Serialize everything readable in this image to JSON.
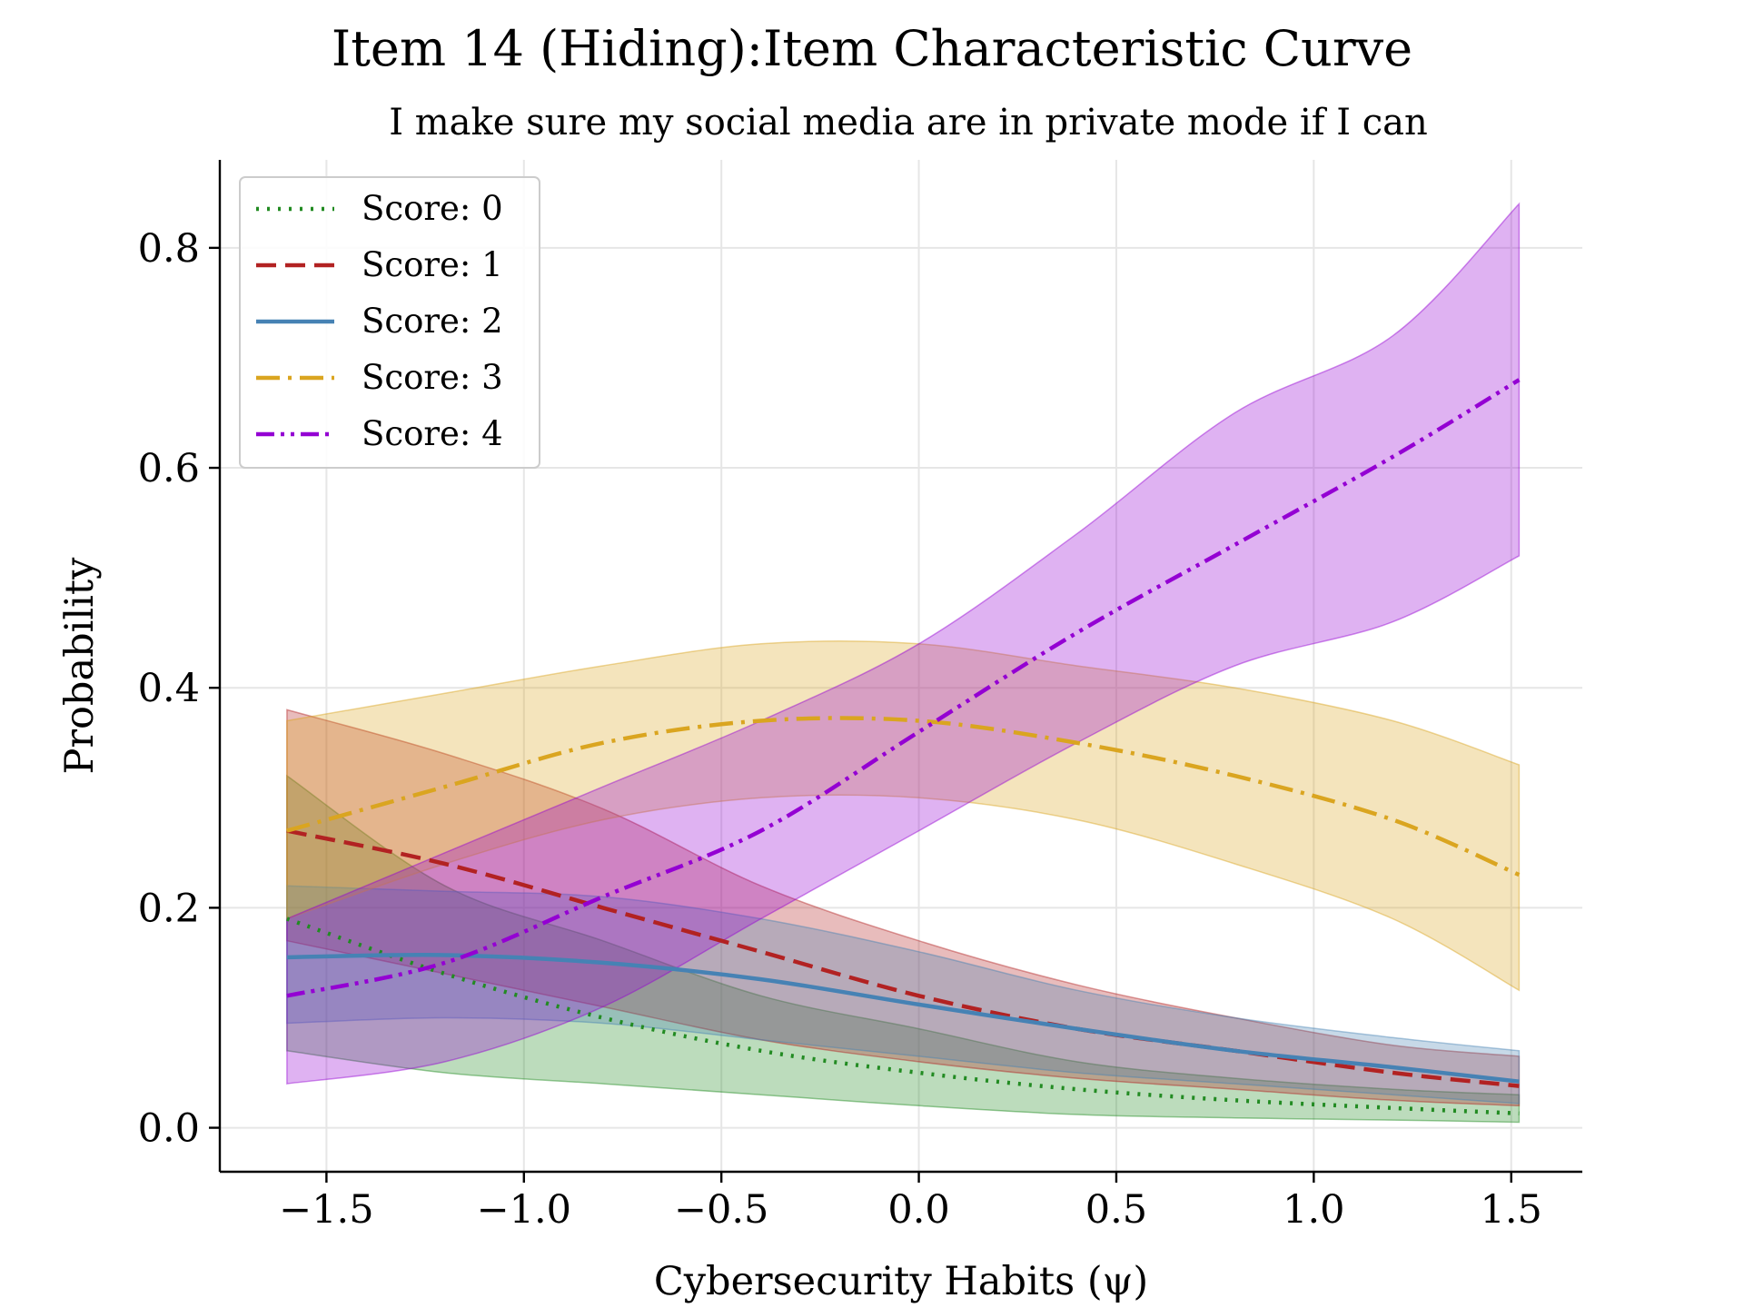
{
  "chart_data": {
    "type": "line",
    "title": "Item 14 (Hiding):Item Characteristic Curve",
    "subtitle": "I make sure my social media are in private mode if I can",
    "xlabel": "Cybersecurity Habits (ψ)",
    "ylabel": "Probability",
    "xlim": [
      -1.77,
      1.68
    ],
    "ylim": [
      -0.04,
      0.88
    ],
    "xticks": [
      -1.5,
      -1.0,
      -0.5,
      0.0,
      0.5,
      1.0,
      1.5
    ],
    "xtick_labels": [
      "−1.5",
      "−1.0",
      "−0.5",
      "0.0",
      "0.5",
      "1.0",
      "1.5"
    ],
    "yticks": [
      0.0,
      0.2,
      0.4,
      0.6,
      0.8
    ],
    "ytick_labels": [
      "0.0",
      "0.2",
      "0.4",
      "0.6",
      "0.8"
    ],
    "grid": true,
    "legend_position": "top-left",
    "x": [
      -1.6,
      -1.2,
      -0.8,
      -0.4,
      0.0,
      0.4,
      0.8,
      1.2,
      1.52
    ],
    "series": [
      {
        "name": "Score: 0",
        "color": "#228b22",
        "dash": "dotted",
        "values": [
          0.19,
          0.14,
          0.1,
          0.07,
          0.05,
          0.035,
          0.025,
          0.018,
          0.013
        ],
        "lower": [
          0.07,
          0.05,
          0.04,
          0.03,
          0.02,
          0.012,
          0.009,
          0.007,
          0.005
        ],
        "upper": [
          0.32,
          0.22,
          0.17,
          0.12,
          0.09,
          0.06,
          0.045,
          0.035,
          0.03
        ]
      },
      {
        "name": "Score: 1",
        "color": "#b22222",
        "dash": "dashed",
        "values": [
          0.27,
          0.24,
          0.2,
          0.16,
          0.12,
          0.09,
          0.07,
          0.05,
          0.038
        ],
        "lower": [
          0.17,
          0.14,
          0.11,
          0.08,
          0.06,
          0.045,
          0.035,
          0.025,
          0.02
        ],
        "upper": [
          0.38,
          0.34,
          0.29,
          0.22,
          0.17,
          0.13,
          0.1,
          0.075,
          0.065
        ]
      },
      {
        "name": "Score: 2",
        "color": "#4682b4",
        "dash": "solid",
        "values": [
          0.155,
          0.157,
          0.15,
          0.135,
          0.112,
          0.09,
          0.07,
          0.055,
          0.042
        ],
        "lower": [
          0.095,
          0.1,
          0.095,
          0.08,
          0.065,
          0.05,
          0.04,
          0.03,
          0.022
        ],
        "upper": [
          0.22,
          0.215,
          0.21,
          0.19,
          0.16,
          0.125,
          0.1,
          0.082,
          0.07
        ]
      },
      {
        "name": "Score: 3",
        "color": "#daa520",
        "dash": "dashdot",
        "values": [
          0.27,
          0.31,
          0.35,
          0.37,
          0.37,
          0.35,
          0.32,
          0.28,
          0.23
        ],
        "lower": [
          0.19,
          0.24,
          0.28,
          0.3,
          0.3,
          0.28,
          0.24,
          0.19,
          0.125
        ],
        "upper": [
          0.37,
          0.395,
          0.42,
          0.44,
          0.44,
          0.42,
          0.4,
          0.37,
          0.33
        ]
      },
      {
        "name": "Score: 4",
        "color": "#9400d3",
        "dash": "dashdotdot",
        "values": [
          0.12,
          0.15,
          0.21,
          0.27,
          0.36,
          0.45,
          0.53,
          0.61,
          0.68
        ],
        "lower": [
          0.04,
          0.06,
          0.11,
          0.19,
          0.27,
          0.35,
          0.42,
          0.46,
          0.52
        ],
        "upper": [
          0.19,
          0.25,
          0.31,
          0.37,
          0.44,
          0.54,
          0.65,
          0.72,
          0.84
        ]
      }
    ]
  }
}
